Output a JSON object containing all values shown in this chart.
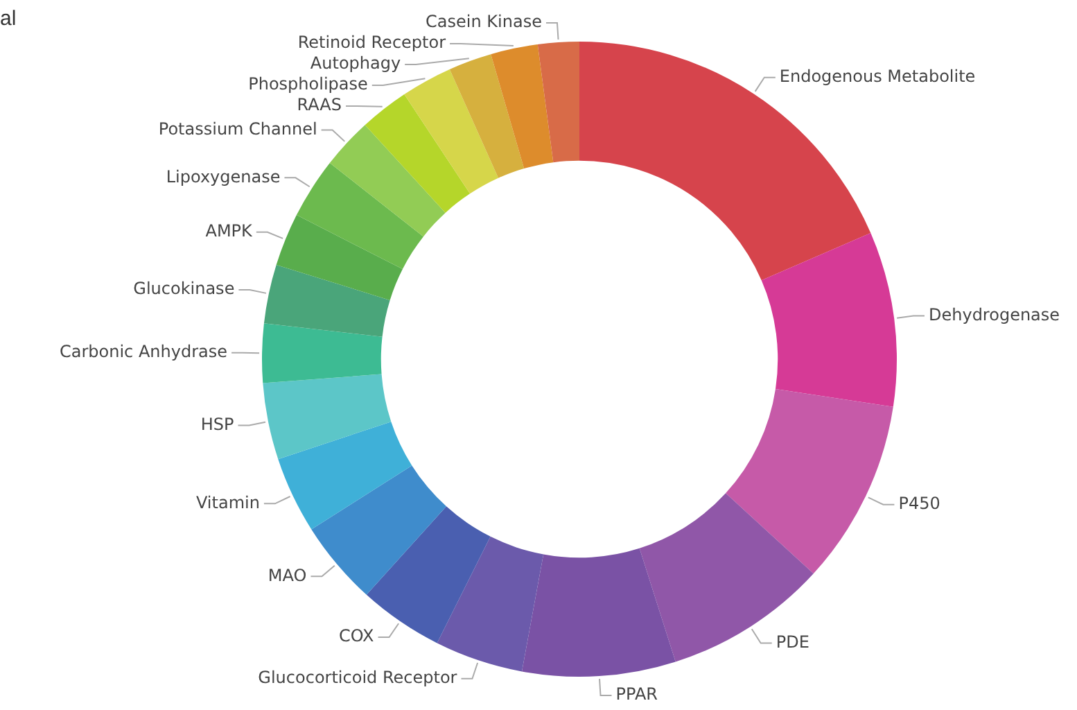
{
  "chart_data": {
    "type": "donut",
    "categories": [
      "Endogenous Metabolite",
      "Dehydrogenase",
      "P450",
      "PDE",
      "PPAR",
      "Glucocorticoid Receptor",
      "COX",
      "MAO",
      "Vitamin",
      "HSP",
      "Carbonic Anhydrase",
      "Glucokinase",
      "AMPK",
      "Lipoxygenase",
      "Potassium Channel",
      "RAAS",
      "Phospholipase",
      "Autophagy",
      "Retinoid Receptor",
      "Casein Kinase"
    ],
    "values": [
      18.5,
      8.9,
      9.4,
      8.3,
      7.8,
      4.5,
      4.3,
      4.3,
      3.9,
      3.9,
      3.0,
      3.0,
      2.7,
      3.1,
      2.6,
      2.5,
      2.6,
      2.2,
      2.4,
      2.1
    ],
    "colors": [
      "#d6444c",
      "#d63a96",
      "#c65aa8",
      "#9057a8",
      "#7a52a5",
      "#6b5aab",
      "#4a5fb0",
      "#3f8ccc",
      "#3fb0d8",
      "#5cc6c8",
      "#3dbb93",
      "#4aa57a",
      "#59ad4c",
      "#6cba4e",
      "#92cc55",
      "#b5d62a",
      "#d6d64a",
      "#d6b03e",
      "#dd8c2c",
      "#d86b48"
    ],
    "annotations": [
      "al"
    ]
  }
}
